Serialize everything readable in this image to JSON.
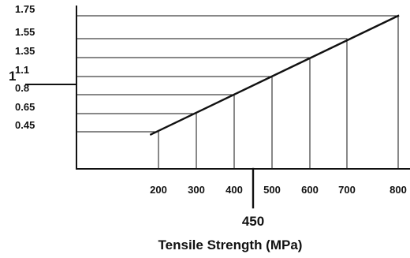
{
  "chart_data": {
    "type": "line",
    "title": "",
    "xlabel": "Tensile Strength (MPa)",
    "ylabel": "",
    "x_ticks": [
      "200",
      "300",
      "400",
      "500",
      "600",
      "700",
      "800"
    ],
    "y_ticks": [
      "1.75",
      "1.55",
      "1.35",
      "1.1",
      "0.8",
      "0.65",
      "0.45"
    ],
    "series": [
      {
        "points": [
          {
            "x": 180,
            "y": 0.42
          },
          {
            "x": 800,
            "y": 1.75
          }
        ]
      }
    ],
    "reference_points": [
      {
        "x": 200,
        "y": 0.45
      },
      {
        "x": 300,
        "y": 0.65
      },
      {
        "x": 400,
        "y": 0.8
      },
      {
        "x": 500,
        "y": 1.1
      },
      {
        "x": 600,
        "y": 1.35
      },
      {
        "x": 700,
        "y": 1.55
      },
      {
        "x": 800,
        "y": 1.75
      }
    ],
    "highlight_x": {
      "label": "450"
    },
    "highlight_y": {
      "label": "1"
    }
  }
}
